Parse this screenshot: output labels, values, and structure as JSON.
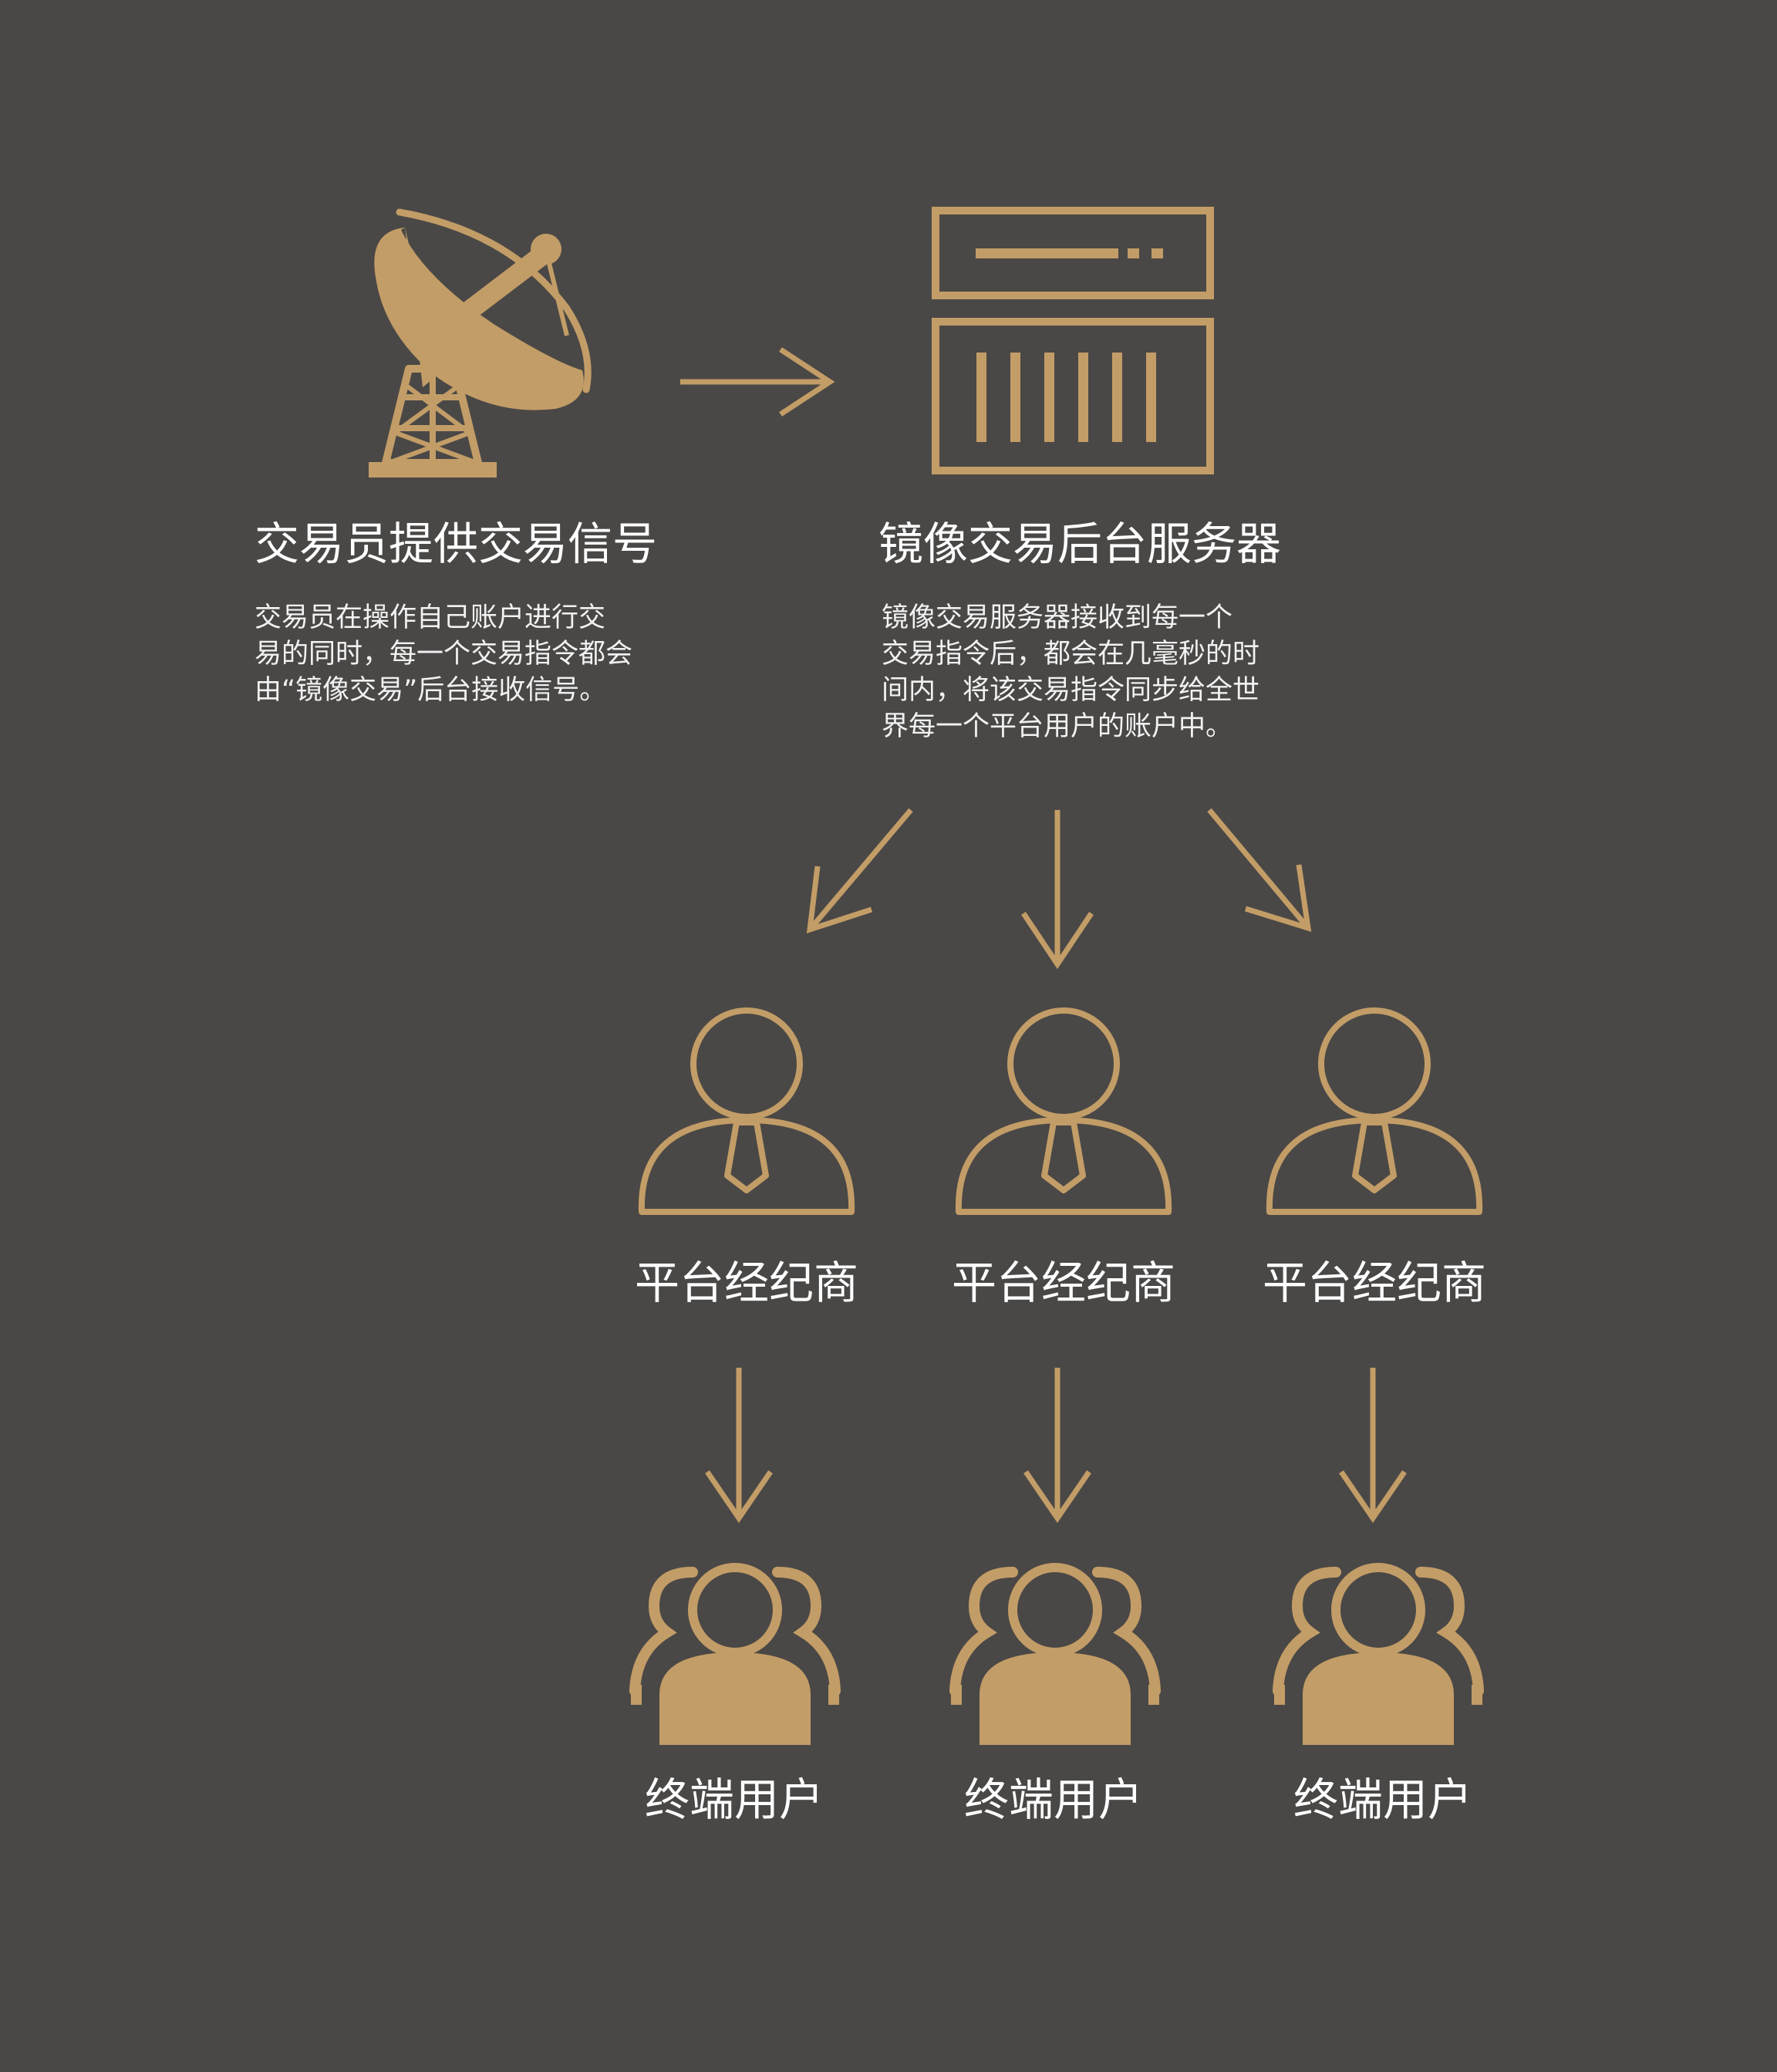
{
  "colors": {
    "background": "#4a4846",
    "accent": "#c39d67",
    "text": "#ffffff"
  },
  "source": {
    "icon": "satellite-dish-icon",
    "title": "交易员提供交易信号",
    "description": [
      "交易员在操作自己账户进行交",
      "易的同时，每一个交易指令都会",
      "由“镜像交易”后台接收信号。"
    ]
  },
  "server": {
    "icon": "server-icon",
    "title": "镜像交易后台服务器",
    "description": [
      "镜像交易服务器接收到每一个",
      "交易指令后，都会在几毫秒的时",
      "间内，将该交易指令同步给全世",
      "界每一个平台用户的账户中。"
    ]
  },
  "brokers": [
    {
      "icon": "broker-person-icon",
      "label": "平台经纪商"
    },
    {
      "icon": "broker-person-icon",
      "label": "平台经纪商"
    },
    {
      "icon": "broker-person-icon",
      "label": "平台经纪商"
    }
  ],
  "end_users": [
    {
      "icon": "user-group-icon",
      "label": "终端用户"
    },
    {
      "icon": "user-group-icon",
      "label": "终端用户"
    },
    {
      "icon": "user-group-icon",
      "label": "终端用户"
    }
  ]
}
